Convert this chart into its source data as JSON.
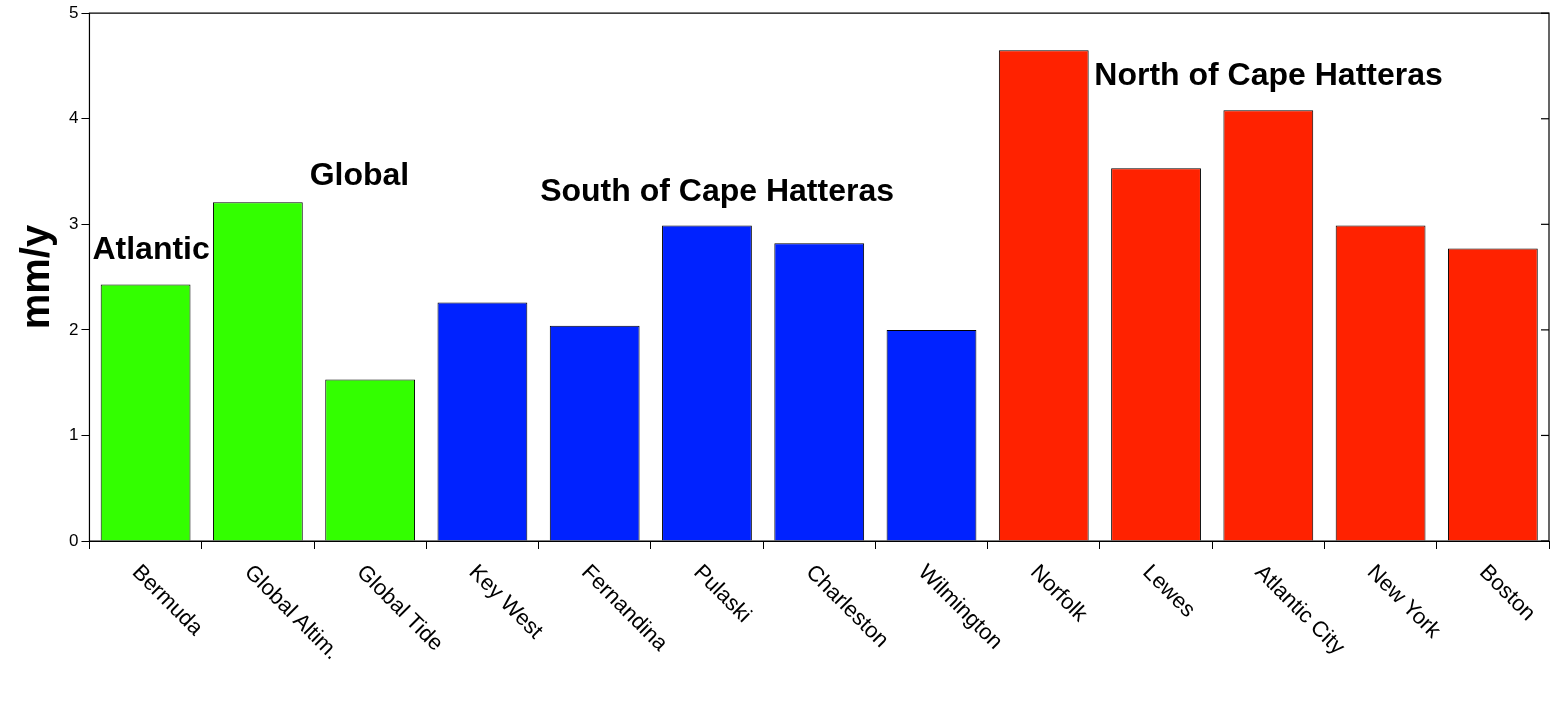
{
  "chart_data": {
    "type": "bar",
    "ylabel": "mm/y",
    "categories": [
      "Bermuda",
      "Global Altim.",
      "Global Tide",
      "Key West",
      "Fernandina",
      "Pulaski",
      "Charleston",
      "Wilmington",
      "Norfolk",
      "Lewes",
      "Atlantic City",
      "New York",
      "Boston"
    ],
    "values": [
      2.43,
      3.21,
      1.53,
      2.26,
      2.04,
      2.99,
      2.82,
      2.0,
      4.65,
      3.53,
      4.08,
      2.99,
      2.77
    ],
    "colors": [
      "#33ff00",
      "#33ff00",
      "#33ff00",
      "#0022ff",
      "#0022ff",
      "#0022ff",
      "#0022ff",
      "#0022ff",
      "#ff2200",
      "#ff2200",
      "#ff2200",
      "#ff2200",
      "#ff2200"
    ],
    "ylim": [
      0,
      5
    ],
    "yticks": [
      0,
      1,
      2,
      3,
      4,
      5
    ],
    "grid": false,
    "legend": false,
    "annotations": [
      "Atlantic",
      "Global",
      "South of Cape Hatteras",
      "North of Cape Hatteras"
    ]
  }
}
